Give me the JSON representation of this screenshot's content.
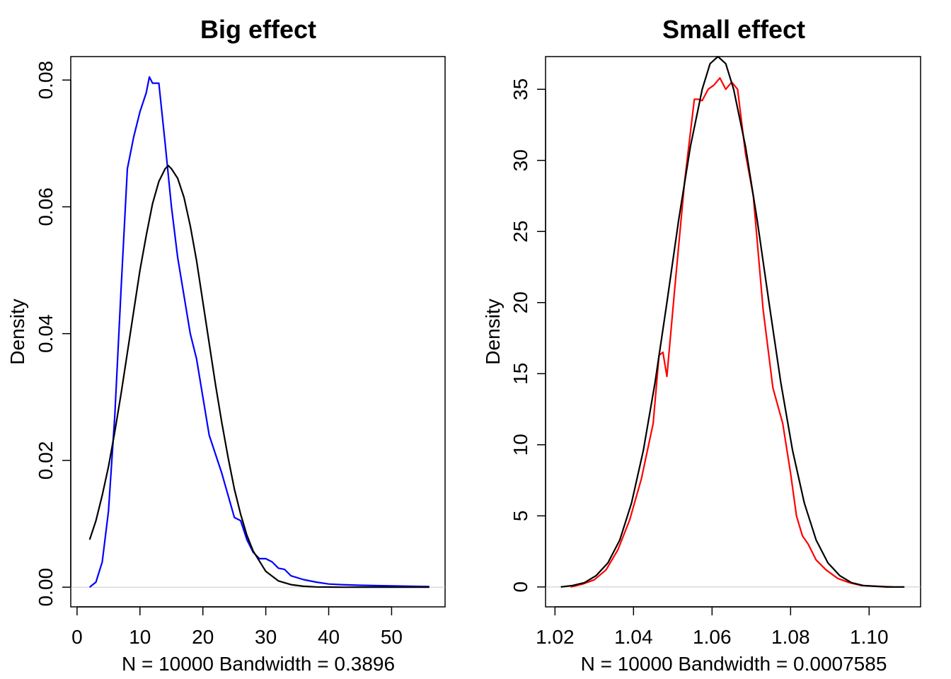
{
  "chart_data": [
    {
      "type": "line",
      "title": "Big effect",
      "xlabel": "N = 10000   Bandwidth = 0.3896",
      "ylabel": "Density",
      "xlim": [
        -1.0,
        58.5
      ],
      "ylim": [
        -0.0031,
        0.0837
      ],
      "xticks": [
        0,
        10,
        20,
        30,
        40,
        50
      ],
      "xtick_labels": [
        "0",
        "10",
        "20",
        "30",
        "40",
        "50"
      ],
      "yticks": [
        0.0,
        0.02,
        0.04,
        0.06,
        0.08
      ],
      "ytick_labels": [
        "0.00",
        "0.02",
        "0.04",
        "0.06",
        "0.08"
      ],
      "grid": false,
      "zero_line": true,
      "series": [
        {
          "color": "#0000ff",
          "x": [
            2,
            3,
            4,
            5,
            6,
            7,
            8,
            9,
            10,
            11,
            11.5,
            12,
            13,
            14,
            15,
            16,
            17,
            18,
            19,
            20,
            21,
            22,
            23,
            24,
            25,
            26,
            27,
            28,
            29,
            30,
            31,
            32,
            33,
            34,
            36,
            38,
            40,
            42,
            45,
            50,
            56
          ],
          "y": [
            0.0,
            0.0008,
            0.004,
            0.012,
            0.027,
            0.047,
            0.066,
            0.071,
            0.075,
            0.078,
            0.0805,
            0.0795,
            0.0795,
            0.07,
            0.06,
            0.052,
            0.046,
            0.04,
            0.036,
            0.03,
            0.024,
            0.021,
            0.018,
            0.0145,
            0.011,
            0.0105,
            0.0075,
            0.0055,
            0.0045,
            0.0045,
            0.004,
            0.003,
            0.0028,
            0.0018,
            0.0012,
            0.0008,
            0.0005,
            0.0004,
            0.0003,
            0.0002,
            0.0001
          ]
        },
        {
          "color": "#000000",
          "x": [
            2,
            3,
            4,
            5,
            6,
            7,
            8,
            9,
            10,
            11,
            12,
            13,
            14,
            14.5,
            15,
            16,
            17,
            18,
            19,
            20,
            21,
            22,
            23,
            24,
            25,
            26,
            27,
            28,
            30,
            32,
            34,
            36,
            38,
            40,
            42,
            45,
            50,
            56
          ],
          "y": [
            0.0075,
            0.0105,
            0.0145,
            0.019,
            0.0245,
            0.0305,
            0.037,
            0.0435,
            0.05,
            0.0555,
            0.0605,
            0.064,
            0.066,
            0.0665,
            0.066,
            0.0645,
            0.0615,
            0.057,
            0.0515,
            0.045,
            0.0385,
            0.032,
            0.026,
            0.0205,
            0.0155,
            0.0115,
            0.0082,
            0.0057,
            0.0025,
            0.001,
            0.0004,
            0.00015,
            5e-05,
            2e-05,
            0.0,
            0.0,
            0.0,
            0.0
          ]
        }
      ]
    },
    {
      "type": "line",
      "title": "Small effect",
      "xlabel": "N = 10000   Bandwidth = 0.0007585",
      "ylabel": "Density",
      "xlim": [
        1.0176,
        1.1131
      ],
      "ylim": [
        -1.4,
        37.3
      ],
      "xticks": [
        1.02,
        1.04,
        1.06,
        1.08,
        1.1
      ],
      "xtick_labels": [
        "1.02",
        "1.04",
        "1.06",
        "1.08",
        "1.10"
      ],
      "yticks": [
        0,
        5,
        10,
        15,
        20,
        25,
        30,
        35
      ],
      "ytick_labels": [
        "0",
        "5",
        "10",
        "15",
        "20",
        "25",
        "30",
        "35"
      ],
      "grid": false,
      "zero_line": true,
      "series": [
        {
          "color": "#ff0000",
          "x": [
            1.024,
            1.027,
            1.03,
            1.033,
            1.036,
            1.039,
            1.042,
            1.045,
            1.0465,
            1.0475,
            1.0485,
            1.0505,
            1.053,
            1.0555,
            1.0565,
            1.0575,
            1.059,
            1.0605,
            1.062,
            1.0635,
            1.065,
            1.0665,
            1.0685,
            1.0705,
            1.073,
            1.0755,
            1.078,
            1.08,
            1.0815,
            1.083,
            1.0845,
            1.0865,
            1.089,
            1.092,
            1.095,
            1.098,
            1.102,
            1.106
          ],
          "y": [
            0.0,
            0.2,
            0.5,
            1.2,
            2.6,
            4.7,
            7.6,
            11.5,
            16.3,
            16.5,
            14.8,
            21.0,
            28.5,
            34.3,
            34.3,
            34.2,
            35.0,
            35.3,
            35.8,
            35.0,
            35.5,
            35.0,
            30.5,
            27.5,
            19.5,
            14.0,
            11.5,
            8.0,
            5.0,
            3.6,
            3.0,
            1.9,
            1.2,
            0.6,
            0.3,
            0.1,
            0.05,
            0.0
          ]
        },
        {
          "color": "#000000",
          "x": [
            1.0215,
            1.0245,
            1.0275,
            1.0305,
            1.0335,
            1.0365,
            1.0395,
            1.0425,
            1.0455,
            1.0485,
            1.0515,
            1.0545,
            1.0575,
            1.0595,
            1.0615,
            1.0635,
            1.0655,
            1.0685,
            1.0715,
            1.0745,
            1.0775,
            1.0805,
            1.0835,
            1.0865,
            1.0895,
            1.0925,
            1.0955,
            1.0985,
            1.1015,
            1.1045,
            1.109
          ],
          "y": [
            0.0,
            0.1,
            0.3,
            0.8,
            1.7,
            3.3,
            5.9,
            9.6,
            14.4,
            20.0,
            25.8,
            31.0,
            35.0,
            36.8,
            37.3,
            36.8,
            35.0,
            31.0,
            25.8,
            20.0,
            14.4,
            9.6,
            5.9,
            3.3,
            1.7,
            0.8,
            0.3,
            0.1,
            0.05,
            0.0,
            0.0
          ]
        }
      ]
    }
  ]
}
